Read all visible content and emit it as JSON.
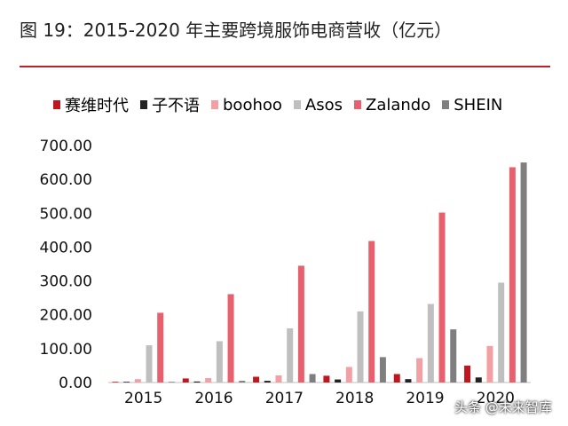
{
  "title": "图 19：2015-2020 年主要跨境服饰电商营收（亿元）",
  "watermark": "头条 @未来智库",
  "chart_data": {
    "type": "bar",
    "title": "图 19：2015-2020 年主要跨境服饰电商营收（亿元）",
    "xlabel": "",
    "ylabel": "",
    "ylim": [
      0,
      700
    ],
    "yticks": [
      "0.00",
      "100.00",
      "200.00",
      "300.00",
      "400.00",
      "500.00",
      "600.00",
      "700.00"
    ],
    "categories": [
      "2015",
      "2016",
      "2017",
      "2018",
      "2019",
      "2020"
    ],
    "grid": false,
    "legend_position": "top",
    "series": [
      {
        "name": "赛维时代",
        "color": "#c0161e",
        "values": [
          1,
          12,
          17,
          20,
          25,
          50
        ]
      },
      {
        "name": "子不语",
        "color": "#222222",
        "values": [
          2,
          3,
          5,
          9,
          10,
          15
        ]
      },
      {
        "name": "boohoo",
        "color": "#f2a0a4",
        "values": [
          10,
          13,
          21,
          46,
          72,
          108
        ]
      },
      {
        "name": "Asos",
        "color": "#bfbfbf",
        "values": [
          110,
          122,
          160,
          210,
          232,
          295
        ]
      },
      {
        "name": "Zalando",
        "color": "#e8606e",
        "values": [
          206,
          261,
          345,
          418,
          502,
          636
        ]
      },
      {
        "name": "SHEIN",
        "color": "#7f7f7f",
        "values": [
          2,
          5,
          25,
          75,
          157,
          650
        ]
      }
    ]
  }
}
